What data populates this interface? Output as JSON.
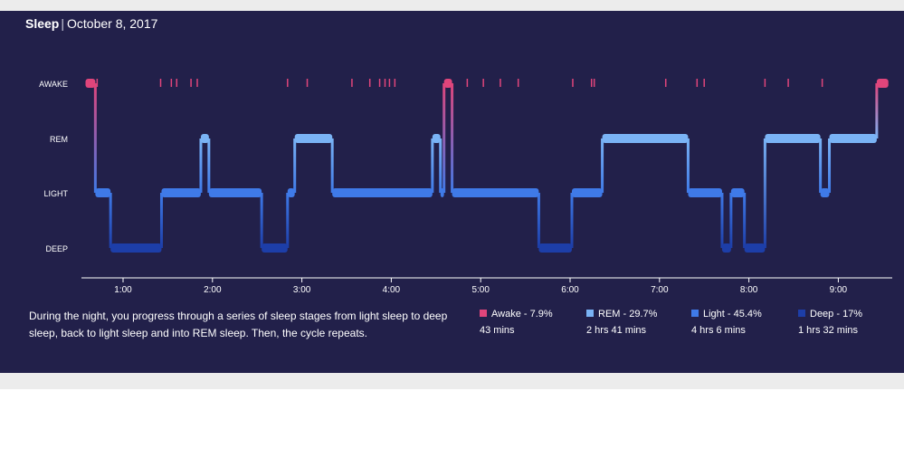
{
  "header": {
    "title": "Sleep",
    "separator": "|",
    "date": "October 8, 2017"
  },
  "description": "During the night, you progress through a series of sleep stages from light sleep to deep sleep, back to light sleep and into REM sleep. Then, the cycle repeats.",
  "legend": [
    {
      "label": "Awake - 7.9%",
      "duration": "43 mins",
      "color": "#e0457b"
    },
    {
      "label": "REM - 29.7%",
      "duration": "2 hrs 41 mins",
      "color": "#7ab3f5"
    },
    {
      "label": "Light - 45.4%",
      "duration": "4 hrs 6 mins",
      "color": "#3f7ae8"
    },
    {
      "label": "Deep - 17%",
      "duration": "1 hrs 32 mins",
      "color": "#1d3ea8"
    }
  ],
  "colors": {
    "background": "#22204a",
    "awake": "#e0457b",
    "rem": "#7ab3f5",
    "light": "#3f7ae8",
    "deep": "#1d3ea8",
    "axis": "#ffffff"
  },
  "chart_data": {
    "type": "line",
    "stages": [
      "AWAKE",
      "REM",
      "LIGHT",
      "DEEP"
    ],
    "x_ticks": [
      "1:00",
      "2:00",
      "3:00",
      "4:00",
      "5:00",
      "6:00",
      "7:00",
      "8:00",
      "9:00"
    ],
    "xlim": [
      0.58,
      9.43
    ],
    "grid": false,
    "segments": [
      {
        "start": 0.58,
        "end": 0.69,
        "stage": "AWAKE"
      },
      {
        "start": 0.69,
        "end": 0.86,
        "stage": "LIGHT"
      },
      {
        "start": 0.86,
        "end": 1.43,
        "stage": "DEEP"
      },
      {
        "start": 1.43,
        "end": 1.87,
        "stage": "LIGHT"
      },
      {
        "start": 1.87,
        "end": 1.96,
        "stage": "REM"
      },
      {
        "start": 1.96,
        "end": 2.55,
        "stage": "LIGHT"
      },
      {
        "start": 2.55,
        "end": 2.84,
        "stage": "DEEP"
      },
      {
        "start": 2.84,
        "end": 2.92,
        "stage": "LIGHT"
      },
      {
        "start": 2.92,
        "end": 3.34,
        "stage": "REM"
      },
      {
        "start": 3.34,
        "end": 4.46,
        "stage": "LIGHT"
      },
      {
        "start": 4.46,
        "end": 4.55,
        "stage": "REM"
      },
      {
        "start": 4.55,
        "end": 4.59,
        "stage": "LIGHT"
      },
      {
        "start": 4.59,
        "end": 4.68,
        "stage": "AWAKE"
      },
      {
        "start": 4.68,
        "end": 5.65,
        "stage": "LIGHT"
      },
      {
        "start": 5.65,
        "end": 6.02,
        "stage": "DEEP"
      },
      {
        "start": 6.02,
        "end": 6.36,
        "stage": "LIGHT"
      },
      {
        "start": 6.36,
        "end": 7.32,
        "stage": "REM"
      },
      {
        "start": 7.32,
        "end": 7.7,
        "stage": "LIGHT"
      },
      {
        "start": 7.7,
        "end": 7.8,
        "stage": "DEEP"
      },
      {
        "start": 7.8,
        "end": 7.95,
        "stage": "LIGHT"
      },
      {
        "start": 7.95,
        "end": 8.18,
        "stage": "DEEP"
      },
      {
        "start": 8.18,
        "end": 8.8,
        "stage": "REM"
      },
      {
        "start": 8.8,
        "end": 8.9,
        "stage": "LIGHT"
      },
      {
        "start": 8.9,
        "end": 9.43,
        "stage": "REM"
      },
      {
        "start": 9.43,
        "end": 9.56,
        "stage": "AWAKE"
      }
    ],
    "awake_marks": [
      0.71,
      1.42,
      1.54,
      1.6,
      1.76,
      1.83,
      2.84,
      3.06,
      3.56,
      3.76,
      3.87,
      3.93,
      3.98,
      4.04,
      4.85,
      5.03,
      5.22,
      5.42,
      6.03,
      6.24,
      6.27,
      7.07,
      7.42,
      7.5,
      8.18,
      8.44,
      8.82
    ]
  }
}
